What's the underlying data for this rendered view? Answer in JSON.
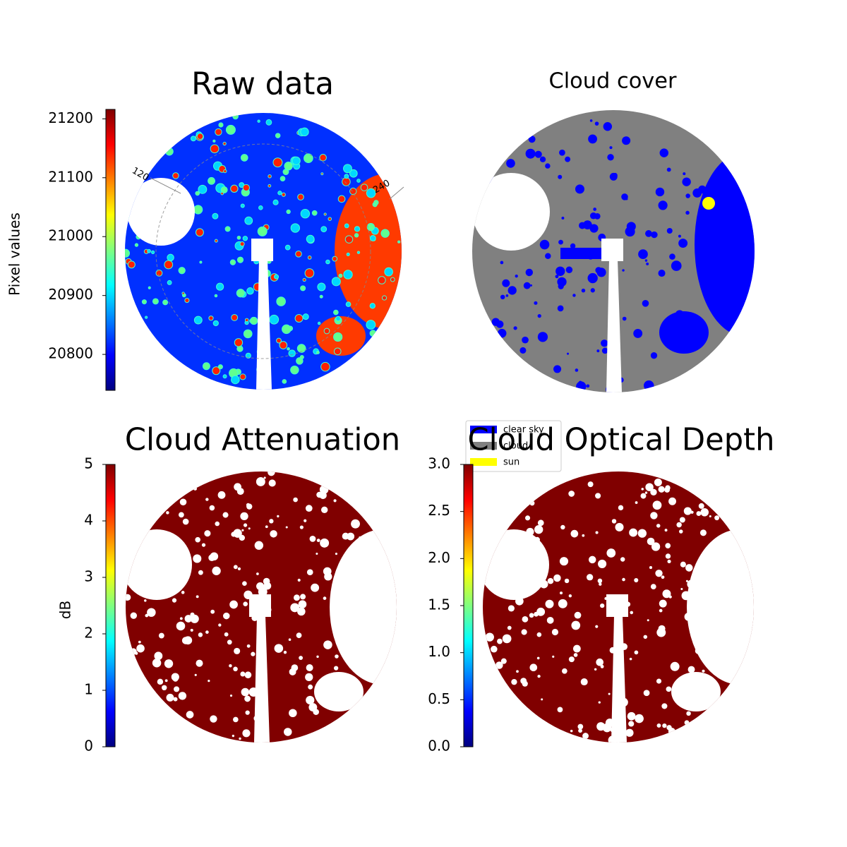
{
  "chart_data": [
    {
      "type": "heatmap",
      "title": "Raw data",
      "colorbar_label": "Pixel values",
      "colormap": "jet",
      "ylim": [
        20739,
        21216
      ],
      "yticks": [
        20800,
        20900,
        21000,
        21100,
        21200
      ],
      "annotations": [
        "120",
        "240"
      ]
    },
    {
      "type": "categorical",
      "title": "Cloud cover",
      "series": [
        {
          "name": "clear sky",
          "color": "#0000ff"
        },
        {
          "name": "cloud",
          "color": "#808080"
        },
        {
          "name": "sun",
          "color": "#ffff00"
        }
      ]
    },
    {
      "type": "heatmap",
      "title": "Cloud Attenuation",
      "colorbar_label": "dB",
      "colormap": "jet",
      "ylim": [
        0,
        5
      ],
      "yticks": [
        0,
        1,
        2,
        3,
        4,
        5
      ]
    },
    {
      "type": "heatmap",
      "title": "Cloud Optical Depth",
      "colormap": "jet",
      "ylim": [
        0,
        3
      ],
      "yticks": [
        {
          "value": 0,
          "label": "0.0"
        },
        {
          "value": 0.5,
          "label": "0.5"
        },
        {
          "value": 1,
          "label": "1.0"
        },
        {
          "value": 1.5,
          "label": "1.5"
        },
        {
          "value": 2,
          "label": "2.0"
        },
        {
          "value": 2.5,
          "label": "2.5"
        },
        {
          "value": 3,
          "label": "3.0"
        }
      ]
    }
  ]
}
